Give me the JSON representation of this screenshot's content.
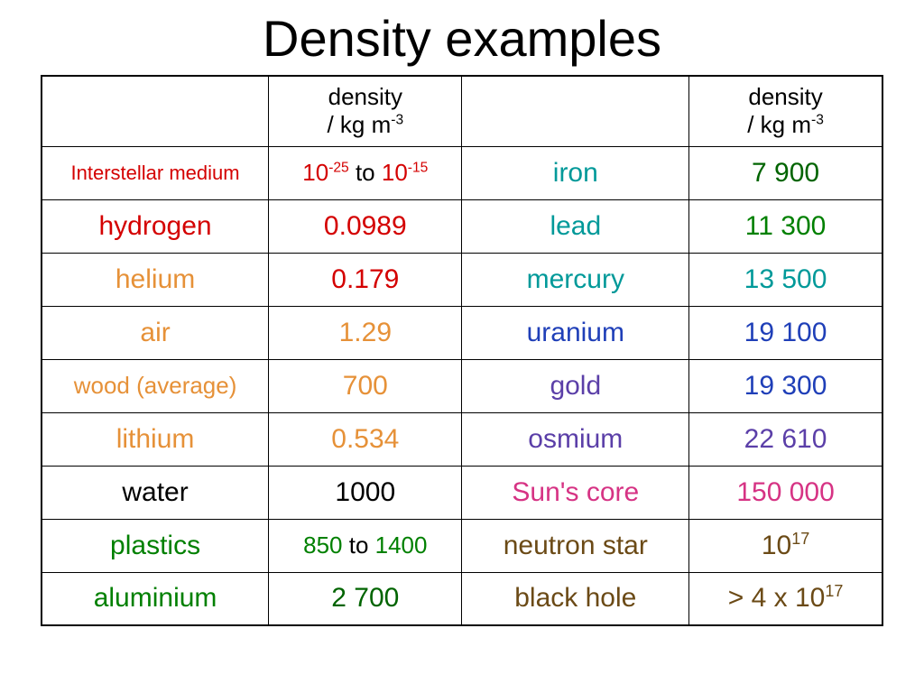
{
  "title": "Density examples",
  "header": {
    "density_label": "density",
    "unit_prefix": "/ kg m",
    "unit_exp": "-3"
  },
  "colors": {
    "red": "#d40000",
    "orange": "#e69138",
    "teal": "#009999",
    "green": "#008000",
    "dgreen": "#006400",
    "blue": "#1f3fb8",
    "violet": "#5b3fa8",
    "magenta": "#d63384",
    "brown": "#6b4a16",
    "black": "#000000"
  },
  "rows": [
    {
      "l_name": "Interstellar medium",
      "l_name_color": "red",
      "l_name_small": true,
      "l_val_parts": [
        {
          "t": "10",
          "c": "red"
        },
        {
          "sup": "-25",
          "c": "red"
        },
        {
          "t": " to ",
          "c": "black"
        },
        {
          "t": "10",
          "c": "red"
        },
        {
          "sup": "-15",
          "c": "red"
        }
      ],
      "l_val_small": true,
      "r_name": "iron",
      "r_name_color": "teal",
      "r_val": "7 900",
      "r_val_color": "dgreen"
    },
    {
      "l_name": "hydrogen",
      "l_name_color": "red",
      "l_val": "0.0989",
      "l_val_color": "red",
      "r_name": "lead",
      "r_name_color": "teal",
      "r_val": "11 300",
      "r_val_color": "green"
    },
    {
      "l_name": "helium",
      "l_name_color": "orange",
      "l_val": "0.179",
      "l_val_color": "red",
      "r_name": "mercury",
      "r_name_color": "teal",
      "r_val": "13 500",
      "r_val_color": "teal"
    },
    {
      "l_name": "air",
      "l_name_color": "orange",
      "l_val": "1.29",
      "l_val_color": "orange",
      "r_name": "uranium",
      "r_name_color": "blue",
      "r_val": "19 100",
      "r_val_color": "blue"
    },
    {
      "l_name": "wood (average)",
      "l_name_color": "orange",
      "l_name_vsm": true,
      "l_val": "700",
      "l_val_color": "orange",
      "r_name": "gold",
      "r_name_color": "violet",
      "r_val": "19 300",
      "r_val_color": "blue"
    },
    {
      "l_name": "lithium",
      "l_name_color": "orange",
      "l_val": "0.534",
      "l_val_color": "orange",
      "r_name": "osmium",
      "r_name_color": "violet",
      "r_val": "22 610",
      "r_val_color": "violet"
    },
    {
      "l_name": "water",
      "l_name_color": "black",
      "l_val": "1000",
      "l_val_color": "black",
      "r_name": "Sun's core",
      "r_name_color": "magenta",
      "r_val": "150 000",
      "r_val_color": "magenta"
    },
    {
      "l_name": "plastics",
      "l_name_color": "green",
      "l_val_parts": [
        {
          "t": "850",
          "c": "green"
        },
        {
          "t": " to ",
          "c": "black"
        },
        {
          "t": "1400",
          "c": "green"
        }
      ],
      "l_val_small": true,
      "r_name": "neutron star",
      "r_name_color": "brown",
      "r_val_parts": [
        {
          "t": "10",
          "c": "brown"
        },
        {
          "sup": "17",
          "c": "brown"
        }
      ]
    },
    {
      "l_name": "aluminium",
      "l_name_color": "green",
      "l_val": "2 700",
      "l_val_color": "dgreen",
      "r_name": "black hole",
      "r_name_color": "brown",
      "r_val_parts": [
        {
          "t": "> 4 x 10",
          "c": "brown"
        },
        {
          "sup": "17",
          "c": "brown"
        }
      ]
    }
  ]
}
